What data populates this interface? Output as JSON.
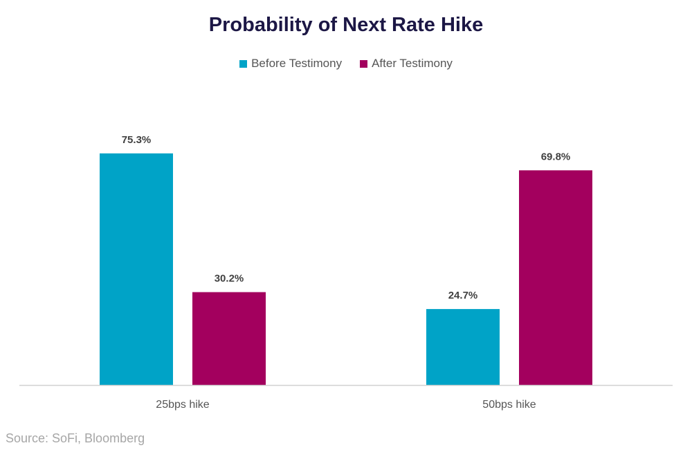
{
  "chart_data": {
    "type": "bar",
    "title": "Probability of Next Rate Hike",
    "categories": [
      "25bps hike",
      "50bps hike"
    ],
    "series": [
      {
        "name": "Before Testimony",
        "values": [
          75.3,
          24.7
        ],
        "color": "#00A3C7"
      },
      {
        "name": "After Testimony",
        "values": [
          30.2,
          69.8
        ],
        "color": "#A3005E"
      }
    ],
    "data_labels": [
      [
        "75.3%",
        "24.7%"
      ],
      [
        "30.2%",
        "69.8%"
      ]
    ],
    "ylim": [
      0,
      100
    ],
    "xlabel": "",
    "ylabel": "",
    "grid": false,
    "legend_position": "top"
  },
  "source": "Source: SoFi, Bloomberg"
}
